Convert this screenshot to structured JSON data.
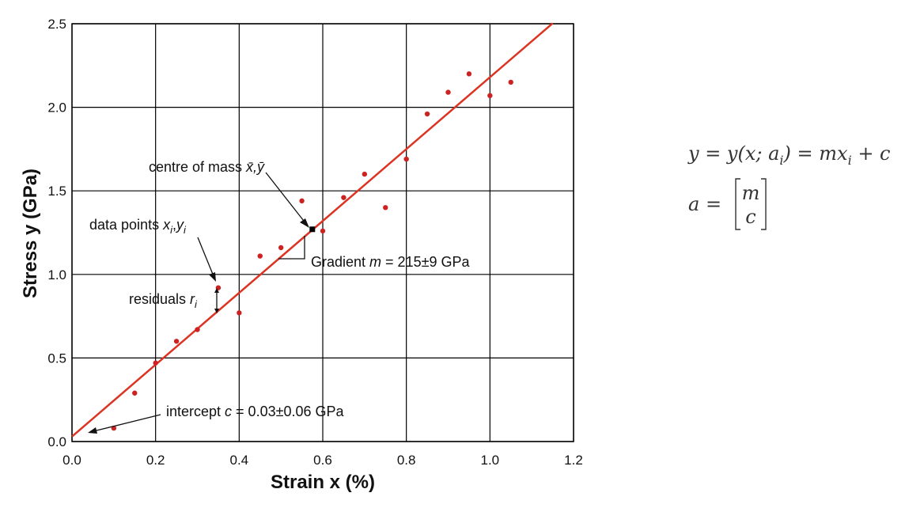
{
  "chart_data": {
    "type": "scatter",
    "xlabel": "Strain x (%)",
    "ylabel": "Stress y (GPa)",
    "xlim": [
      0.0,
      1.2
    ],
    "ylim": [
      0.0,
      2.5
    ],
    "xticks": [
      "0.0",
      "0.2",
      "0.4",
      "0.6",
      "0.8",
      "1.0",
      "1.2"
    ],
    "yticks": [
      "0.0",
      "0.5",
      "1.0",
      "1.5",
      "2.0",
      "2.5"
    ],
    "grid": true,
    "colors": {
      "points": "#cc2222",
      "fit_line": "#dd3322",
      "grid": "#000000"
    },
    "points": [
      {
        "x": 0.1,
        "y": 0.08
      },
      {
        "x": 0.15,
        "y": 0.29
      },
      {
        "x": 0.2,
        "y": 0.47
      },
      {
        "x": 0.25,
        "y": 0.6
      },
      {
        "x": 0.3,
        "y": 0.67
      },
      {
        "x": 0.35,
        "y": 0.92
      },
      {
        "x": 0.4,
        "y": 0.77
      },
      {
        "x": 0.45,
        "y": 1.11
      },
      {
        "x": 0.5,
        "y": 1.16
      },
      {
        "x": 0.55,
        "y": 1.44
      },
      {
        "x": 0.6,
        "y": 1.26
      },
      {
        "x": 0.65,
        "y": 1.46
      },
      {
        "x": 0.7,
        "y": 1.6
      },
      {
        "x": 0.75,
        "y": 1.4
      },
      {
        "x": 0.8,
        "y": 1.69
      },
      {
        "x": 0.85,
        "y": 1.96
      },
      {
        "x": 0.9,
        "y": 2.09
      },
      {
        "x": 0.95,
        "y": 2.2
      },
      {
        "x": 1.0,
        "y": 2.07
      },
      {
        "x": 1.05,
        "y": 2.15
      }
    ],
    "fit_line": {
      "x_start": 0.0,
      "x_end": 1.15,
      "slope": 2.15,
      "intercept": 0.03
    },
    "centre_of_mass": {
      "x": 0.575,
      "y": 1.27
    },
    "annotations": {
      "centre_of_mass": {
        "text": "centre of mass ",
        "var": "x̄,ȳ"
      },
      "data_points": {
        "text": "data points ",
        "var_x": "x",
        "sub_i1": "i",
        "comma": ",",
        "var_y": "y",
        "sub_i2": "i"
      },
      "residuals": {
        "text": "residuals ",
        "var": "r",
        "sub": "i"
      },
      "gradient": {
        "text": "Gradient ",
        "var": "m",
        "value": " = 215±9 GPa"
      },
      "intercept": {
        "text": "intercept ",
        "var": "c",
        "value": " = 0.03±0.06 GPa"
      }
    }
  },
  "equations": {
    "line1": {
      "lhs": "y = y(x; a",
      "sub": "i",
      "mid": ") = mx",
      "sub2": "i",
      "rhs": " + c"
    },
    "line2": {
      "lhs": "a =",
      "row1": "m",
      "row2": "c"
    }
  }
}
